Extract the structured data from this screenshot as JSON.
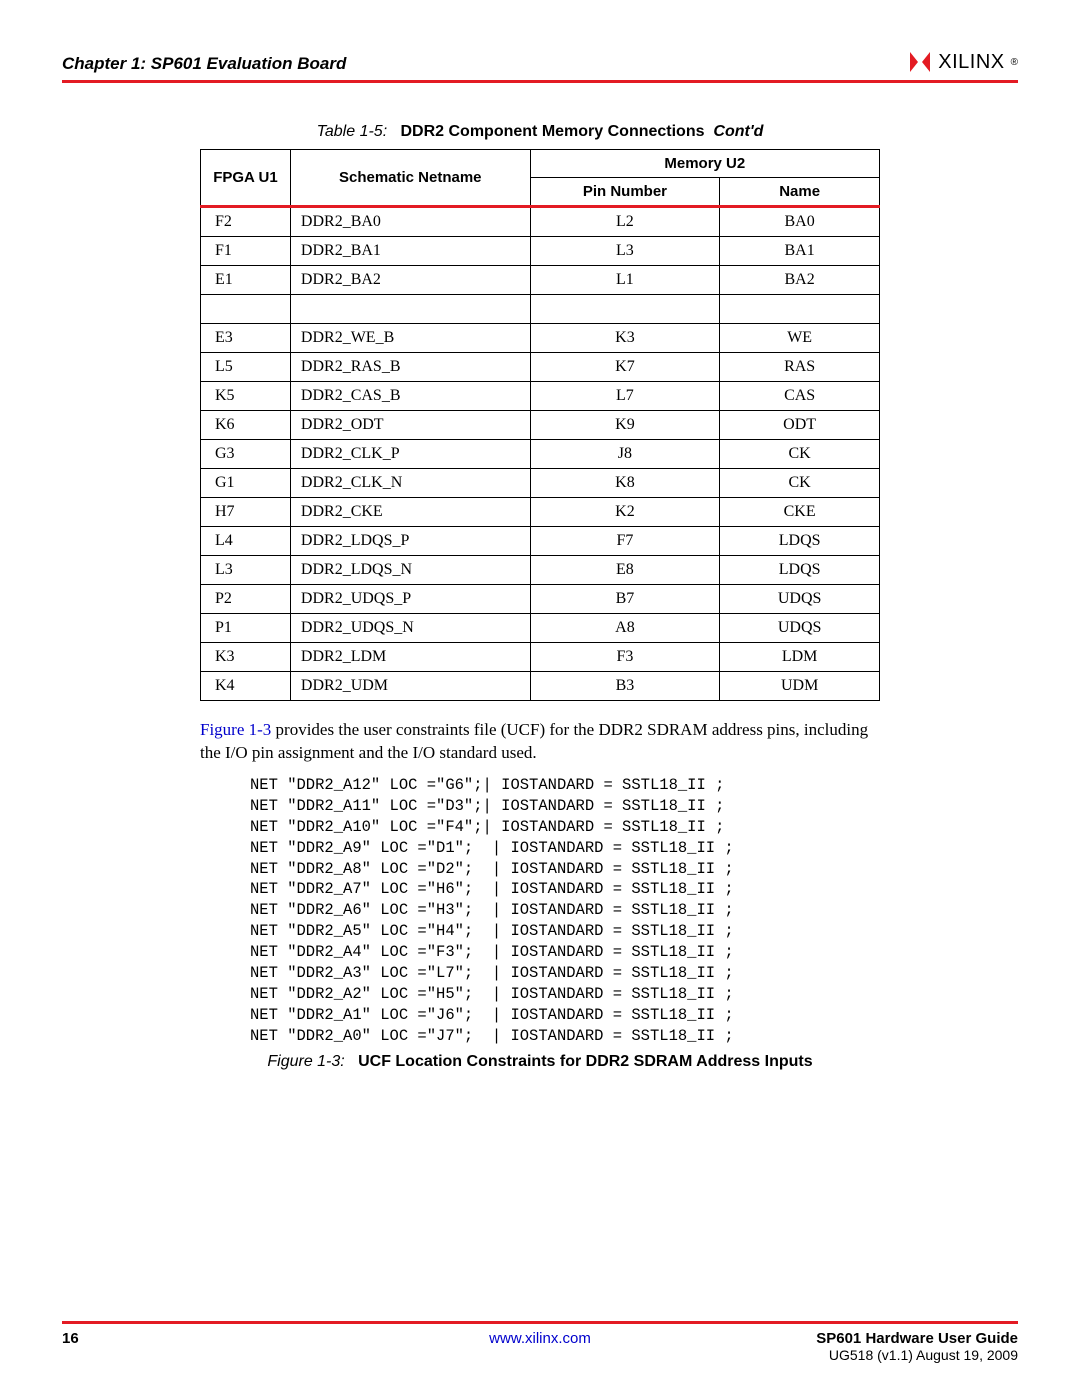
{
  "header": {
    "chapter": "Chapter 1:  SP601 Evaluation Board",
    "logo_text": "XILINX",
    "logo_sep": "®"
  },
  "table_caption": {
    "prefix": "Table 1-5:",
    "title": "DDR2 Component Memory Connections",
    "contd": "Cont'd"
  },
  "table": {
    "headers": {
      "fpga": "FPGA U1",
      "netname": "Schematic Netname",
      "memory": "Memory U2",
      "pin": "Pin Number",
      "name": "Name"
    },
    "rows": [
      {
        "fpga": "F2",
        "net": "DDR2_BA0",
        "pin": "L2",
        "name": "BA0"
      },
      {
        "fpga": "F1",
        "net": "DDR2_BA1",
        "pin": "L3",
        "name": "BA1"
      },
      {
        "fpga": "E1",
        "net": "DDR2_BA2",
        "pin": "L1",
        "name": "BA2"
      },
      {
        "blank": true
      },
      {
        "fpga": "E3",
        "net": "DDR2_WE_B",
        "pin": "K3",
        "name": "WE"
      },
      {
        "fpga": "L5",
        "net": "DDR2_RAS_B",
        "pin": "K7",
        "name": "RAS"
      },
      {
        "fpga": "K5",
        "net": "DDR2_CAS_B",
        "pin": "L7",
        "name": "CAS"
      },
      {
        "fpga": "K6",
        "net": "DDR2_ODT",
        "pin": "K9",
        "name": "ODT"
      },
      {
        "fpga": "G3",
        "net": "DDR2_CLK_P",
        "pin": "J8",
        "name": "CK"
      },
      {
        "fpga": "G1",
        "net": "DDR2_CLK_N",
        "pin": "K8",
        "name": "CK"
      },
      {
        "fpga": "H7",
        "net": "DDR2_CKE",
        "pin": "K2",
        "name": "CKE"
      },
      {
        "fpga": "L4",
        "net": "DDR2_LDQS_P",
        "pin": "F7",
        "name": "LDQS"
      },
      {
        "fpga": "L3",
        "net": "DDR2_LDQS_N",
        "pin": "E8",
        "name": "LDQS"
      },
      {
        "fpga": "P2",
        "net": "DDR2_UDQS_P",
        "pin": "B7",
        "name": "UDQS"
      },
      {
        "fpga": "P1",
        "net": "DDR2_UDQS_N",
        "pin": "A8",
        "name": "UDQS"
      },
      {
        "fpga": "K3",
        "net": "DDR2_LDM",
        "pin": "F3",
        "name": "LDM"
      },
      {
        "fpga": "K4",
        "net": "DDR2_UDM",
        "pin": "B3",
        "name": "UDM"
      }
    ]
  },
  "body_text": {
    "link": "Figure 1-3",
    "rest": " provides the user constraints file (UCF) for the DDR2 SDRAM address pins, including the I/O pin assignment and the I/O standard used."
  },
  "code": "NET \"DDR2_A12\" LOC =\"G6\";| IOSTANDARD = SSTL18_II ;\nNET \"DDR2_A11\" LOC =\"D3\";| IOSTANDARD = SSTL18_II ;\nNET \"DDR2_A10\" LOC =\"F4\";| IOSTANDARD = SSTL18_II ;\nNET \"DDR2_A9\" LOC =\"D1\";  | IOSTANDARD = SSTL18_II ;\nNET \"DDR2_A8\" LOC =\"D2\";  | IOSTANDARD = SSTL18_II ;\nNET \"DDR2_A7\" LOC =\"H6\";  | IOSTANDARD = SSTL18_II ;\nNET \"DDR2_A6\" LOC =\"H3\";  | IOSTANDARD = SSTL18_II ;\nNET \"DDR2_A5\" LOC =\"H4\";  | IOSTANDARD = SSTL18_II ;\nNET \"DDR2_A4\" LOC =\"F3\";  | IOSTANDARD = SSTL18_II ;\nNET \"DDR2_A3\" LOC =\"L7\";  | IOSTANDARD = SSTL18_II ;\nNET \"DDR2_A2\" LOC =\"H5\";  | IOSTANDARD = SSTL18_II ;\nNET \"DDR2_A1\" LOC =\"J6\";  | IOSTANDARD = SSTL18_II ;\nNET \"DDR2_A0\" LOC =\"J7\";  | IOSTANDARD = SSTL18_II ;",
  "figure_caption": {
    "prefix": "Figure 1-3:",
    "title": "UCF Location Constraints for DDR2 SDRAM Address Inputs"
  },
  "footer": {
    "page": "16",
    "link": "www.xilinx.com",
    "guide": "SP601 Hardware User Guide",
    "version": "UG518 (v1.1) August 19, 2009"
  }
}
